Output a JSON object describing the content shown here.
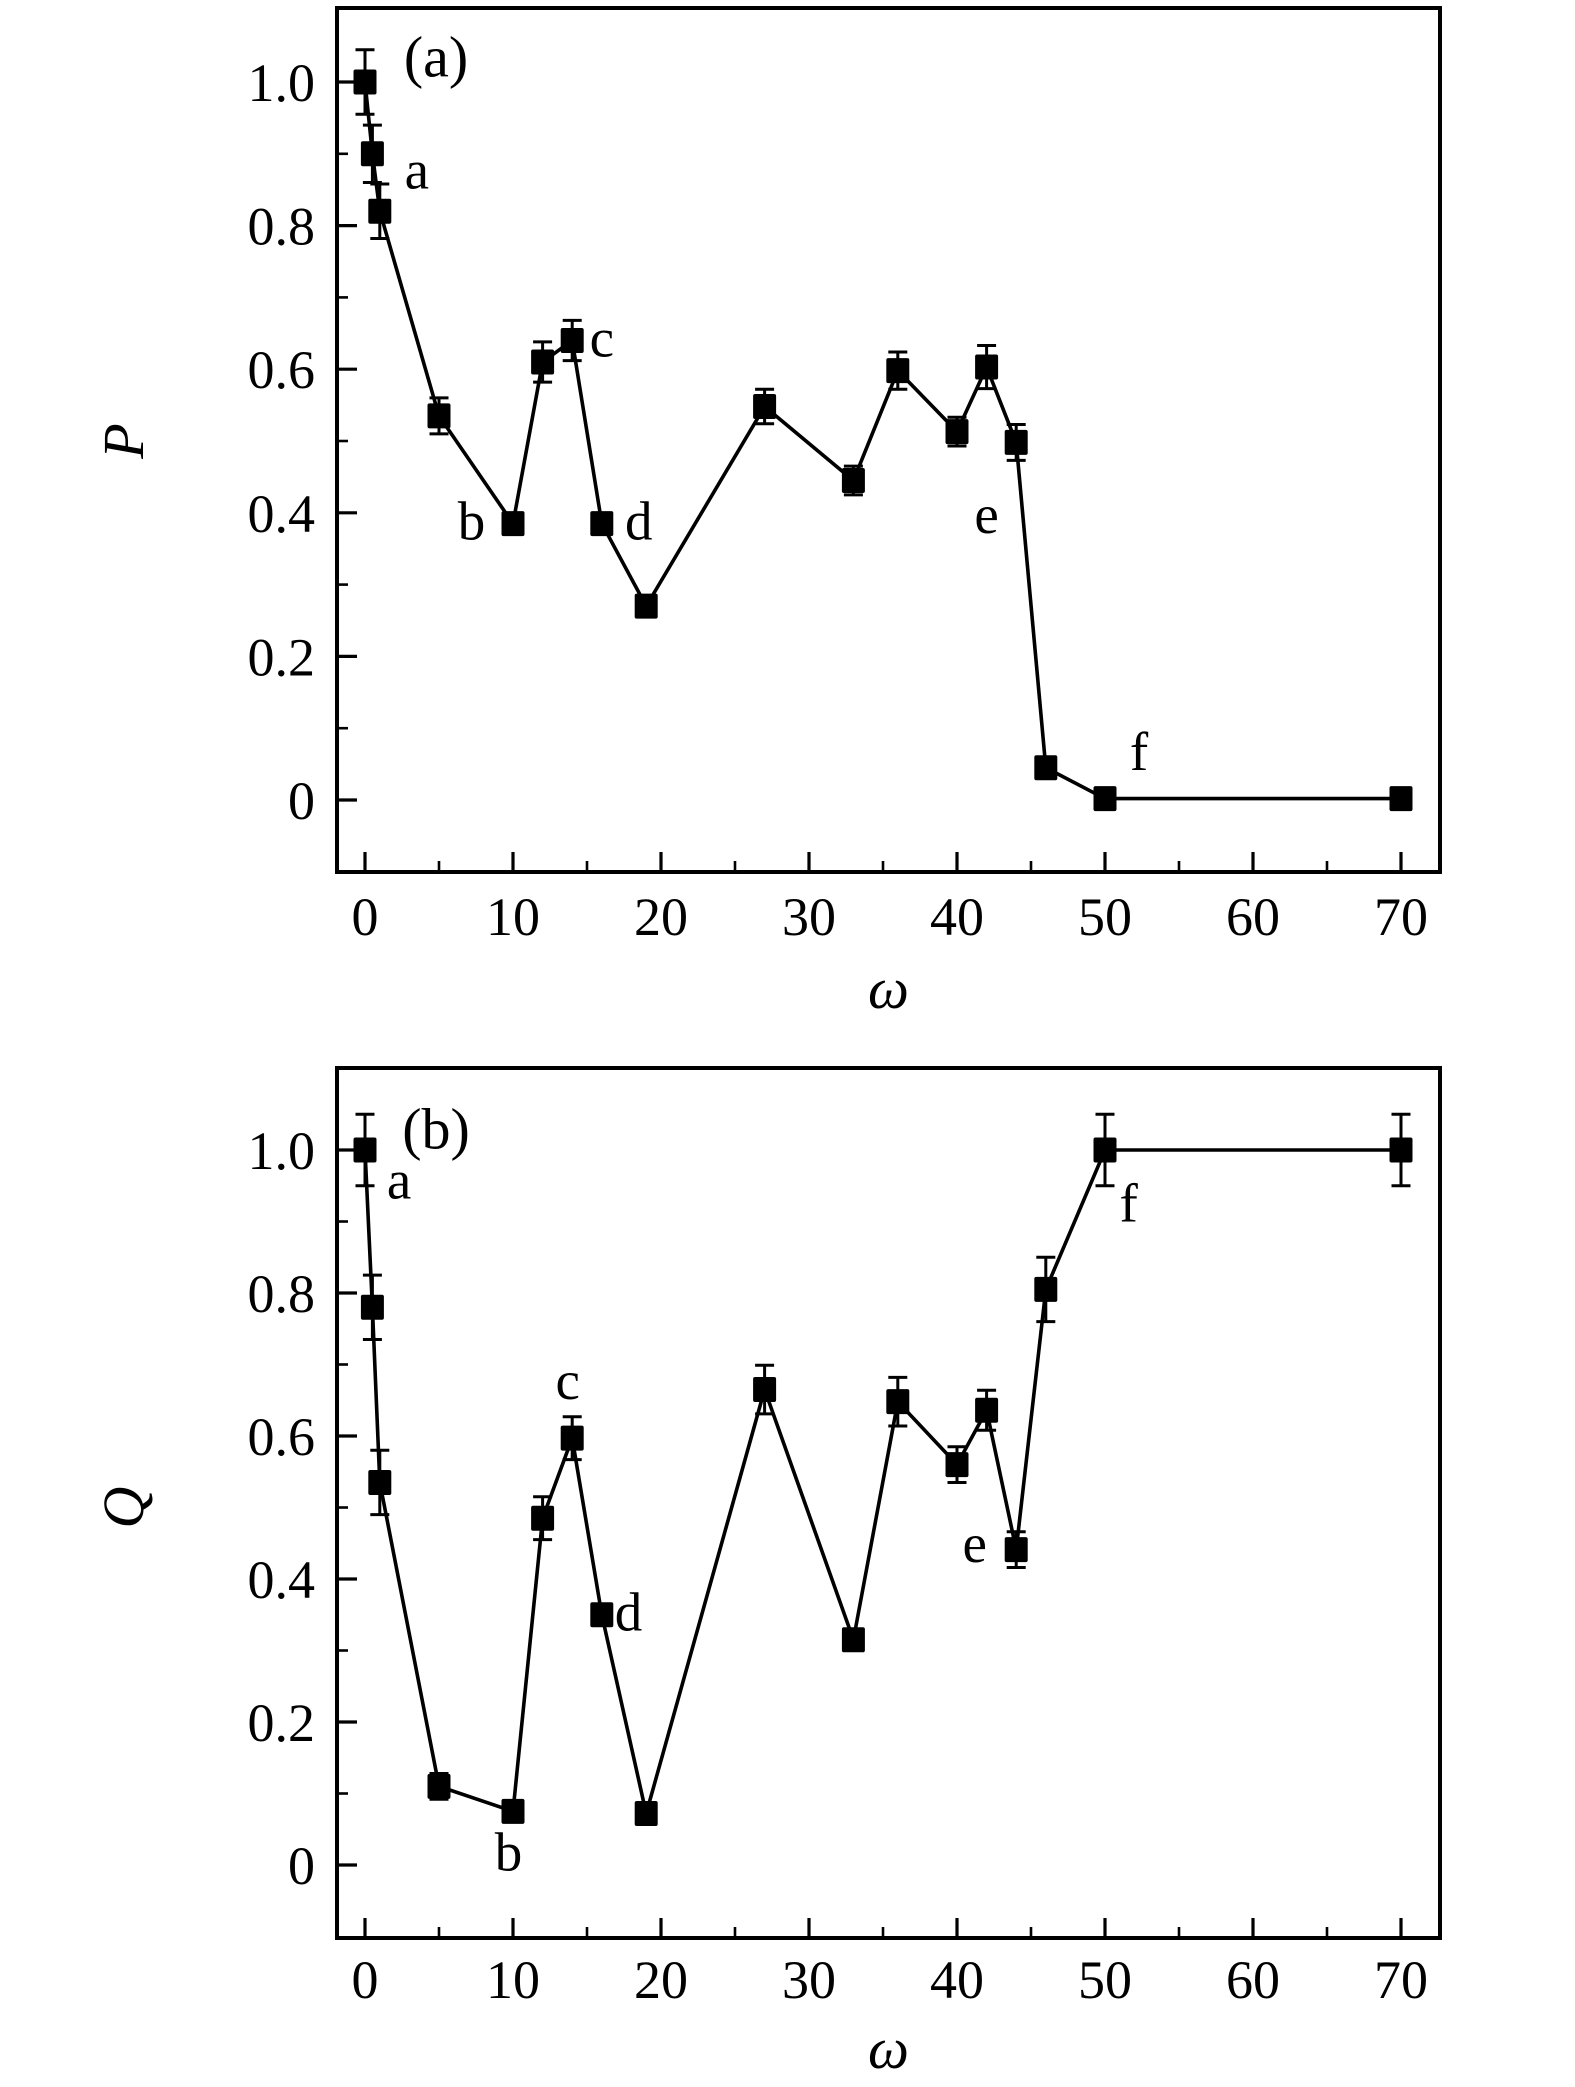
{
  "figure": {
    "background": "#ffffff",
    "ink_color": "#000000"
  },
  "chart_data": [
    {
      "type": "line",
      "panel_title": "(a)",
      "xlabel": "ω",
      "ylabel": "P",
      "line_color": "#000000",
      "marker": "filled-square",
      "grid": false,
      "legend": null,
      "xlim": [
        -1.9,
        72.6
      ],
      "ylim": [
        -0.1,
        1.11
      ],
      "xticks": [
        0,
        10,
        20,
        30,
        40,
        50,
        60,
        70
      ],
      "xtick_labels": [
        "0",
        "10",
        "20",
        "30",
        "40",
        "50",
        "60",
        "70"
      ],
      "xminor_ticks": [
        5,
        15,
        25,
        35,
        45,
        55,
        65
      ],
      "yticks": [
        0,
        0.2,
        0.4,
        0.6,
        0.8,
        1.0
      ],
      "ytick_labels": [
        "0",
        "0.2",
        "0.4",
        "0.6",
        "0.8",
        "1.0"
      ],
      "yminor_ticks": [
        0.1,
        0.3,
        0.5,
        0.7,
        0.9
      ],
      "series": [
        {
          "name": "P",
          "x": [
            0,
            0.5,
            1,
            5,
            10,
            12,
            14,
            16,
            19,
            27,
            33,
            36,
            40,
            42,
            44,
            46,
            50,
            70
          ],
          "y": [
            1.0,
            0.9,
            0.82,
            0.535,
            0.385,
            0.61,
            0.64,
            0.385,
            0.27,
            0.548,
            0.445,
            0.598,
            0.513,
            0.603,
            0.498,
            0.045,
            0.002,
            0.002
          ],
          "yerr": [
            0.045,
            0.04,
            0.038,
            0.025,
            0.012,
            0.028,
            0.028,
            0.012,
            0.012,
            0.024,
            0.02,
            0.026,
            0.02,
            0.03,
            0.025,
            0.012,
            0.006,
            0.006
          ]
        }
      ],
      "annotations": [
        {
          "text": "(a)",
          "x": 4.8,
          "y": 1.008,
          "role": "panel-title"
        },
        {
          "text": "a",
          "x": 3.5,
          "y": 0.852,
          "role": "point-label"
        },
        {
          "text": "b",
          "x": 7.2,
          "y": 0.363,
          "role": "point-label"
        },
        {
          "text": "c",
          "x": 16.0,
          "y": 0.618,
          "role": "point-label"
        },
        {
          "text": "d",
          "x": 18.5,
          "y": 0.363,
          "role": "point-label"
        },
        {
          "text": "e",
          "x": 42.0,
          "y": 0.372,
          "role": "point-label"
        },
        {
          "text": "f",
          "x": 52.3,
          "y": 0.042,
          "role": "point-label"
        }
      ]
    },
    {
      "type": "line",
      "panel_title": "(b)",
      "xlabel": "ω",
      "ylabel": "Q",
      "line_color": "#000000",
      "marker": "filled-square",
      "grid": false,
      "legend": null,
      "xlim": [
        -1.9,
        72.6
      ],
      "ylim": [
        -0.1,
        1.11
      ],
      "xticks": [
        0,
        10,
        20,
        30,
        40,
        50,
        60,
        70
      ],
      "xtick_labels": [
        "0",
        "10",
        "20",
        "30",
        "40",
        "50",
        "60",
        "70"
      ],
      "xminor_ticks": [
        5,
        15,
        25,
        35,
        45,
        55,
        65
      ],
      "yticks": [
        0,
        0.2,
        0.4,
        0.6,
        0.8,
        1.0
      ],
      "ytick_labels": [
        "0",
        "0.2",
        "0.4",
        "0.6",
        "0.8",
        "1.0"
      ],
      "yminor_ticks": [
        0.1,
        0.3,
        0.5,
        0.7,
        0.9
      ],
      "series": [
        {
          "name": "Q",
          "x": [
            0,
            0.5,
            1,
            5,
            10,
            12,
            14,
            16,
            19,
            27,
            33,
            36,
            40,
            42,
            44,
            46,
            50,
            70
          ],
          "y": [
            1.0,
            0.78,
            0.535,
            0.11,
            0.075,
            0.485,
            0.597,
            0.35,
            0.072,
            0.665,
            0.315,
            0.648,
            0.56,
            0.636,
            0.441,
            0.805,
            1.0,
            1.0
          ],
          "yerr": [
            0.05,
            0.045,
            0.045,
            0.018,
            0.012,
            0.03,
            0.03,
            0.012,
            0.012,
            0.034,
            0.015,
            0.034,
            0.025,
            0.028,
            0.025,
            0.045,
            0.05,
            0.05
          ]
        }
      ],
      "annotations": [
        {
          "text": "(b)",
          "x": 4.8,
          "y": 1.002,
          "role": "panel-title"
        },
        {
          "text": "a",
          "x": 2.3,
          "y": 0.932,
          "role": "point-label"
        },
        {
          "text": "b",
          "x": 9.7,
          "y": -0.008,
          "role": "point-label"
        },
        {
          "text": "c",
          "x": 13.7,
          "y": 0.652,
          "role": "point-label"
        },
        {
          "text": "d",
          "x": 17.8,
          "y": 0.328,
          "role": "point-label"
        },
        {
          "text": "e",
          "x": 41.2,
          "y": 0.424,
          "role": "point-label"
        },
        {
          "text": "f",
          "x": 51.6,
          "y": 0.9,
          "role": "point-label"
        }
      ]
    }
  ]
}
